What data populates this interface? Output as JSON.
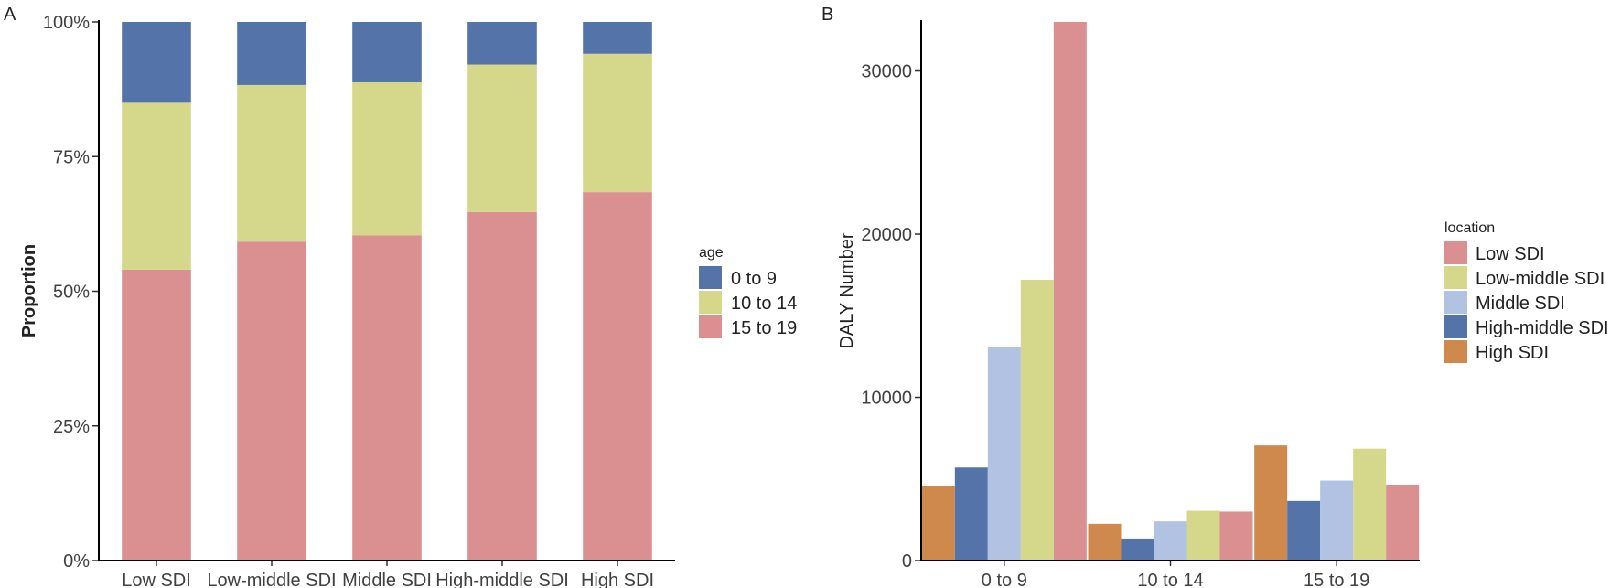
{
  "panels": {
    "a": {
      "label": "A"
    },
    "b": {
      "label": "B"
    }
  },
  "chart_data": [
    {
      "type": "bar",
      "stacked": true,
      "normalized": true,
      "title": "",
      "xlabel": "",
      "ylabel": "Proportion",
      "ylim": [
        0,
        100
      ],
      "y_ticks": [
        "0%",
        "25%",
        "50%",
        "75%",
        "100%"
      ],
      "y_tick_values": [
        0,
        25,
        50,
        75,
        100
      ],
      "categories": [
        "Low SDI",
        "Low-middle SDI",
        "Middle SDI",
        "High-middle SDI",
        "High SDI"
      ],
      "series": [
        {
          "name": "15 to 19",
          "color": "#da8f90",
          "values": [
            54.0,
            59.2,
            60.4,
            64.7,
            68.4
          ]
        },
        {
          "name": "10 to 14",
          "color": "#d5d78b",
          "values": [
            31.0,
            29.1,
            28.4,
            27.4,
            25.7
          ]
        },
        {
          "name": "0 to 9",
          "color": "#5473a8",
          "values": [
            15.0,
            11.7,
            11.2,
            7.9,
            5.9
          ]
        }
      ],
      "legend": {
        "title": "age",
        "position": "right",
        "items": [
          {
            "label": "0 to 9",
            "color": "#5473a8"
          },
          {
            "label": "10 to 14",
            "color": "#d5d78b"
          },
          {
            "label": "15 to 19",
            "color": "#da8f90"
          }
        ]
      },
      "grid": false
    },
    {
      "type": "bar",
      "grouped": true,
      "title": "",
      "xlabel": "",
      "ylabel": "DALY Number",
      "ylim": [
        0,
        33000
      ],
      "y_ticks": [
        "0",
        "10000",
        "20000",
        "30000"
      ],
      "y_tick_values": [
        0,
        10000,
        20000,
        30000
      ],
      "categories": [
        "0 to 9",
        "10 to 14",
        "15 to 19"
      ],
      "series": [
        {
          "name": "High SDI",
          "color": "#d0894c",
          "values": [
            4550,
            2250,
            7050
          ]
        },
        {
          "name": "High-middle SDI",
          "color": "#5473a8",
          "values": [
            5700,
            1350,
            3650
          ]
        },
        {
          "name": "Middle SDI",
          "color": "#b1c2e3",
          "values": [
            13100,
            2400,
            4900
          ]
        },
        {
          "name": "Low-middle SDI",
          "color": "#d5d78b",
          "values": [
            17200,
            3050,
            6850
          ]
        },
        {
          "name": "Low SDI",
          "color": "#da8f90",
          "values": [
            33000,
            3000,
            4650
          ]
        }
      ],
      "legend": {
        "title": "location",
        "position": "right",
        "items": [
          {
            "label": "Low SDI",
            "color": "#da8f90"
          },
          {
            "label": "Low-middle SDI",
            "color": "#d5d78b"
          },
          {
            "label": "Middle SDI",
            "color": "#b1c2e3"
          },
          {
            "label": "High-middle SDI",
            "color": "#5473a8"
          },
          {
            "label": "High SDI",
            "color": "#d0894c"
          }
        ]
      },
      "grid": false
    }
  ]
}
